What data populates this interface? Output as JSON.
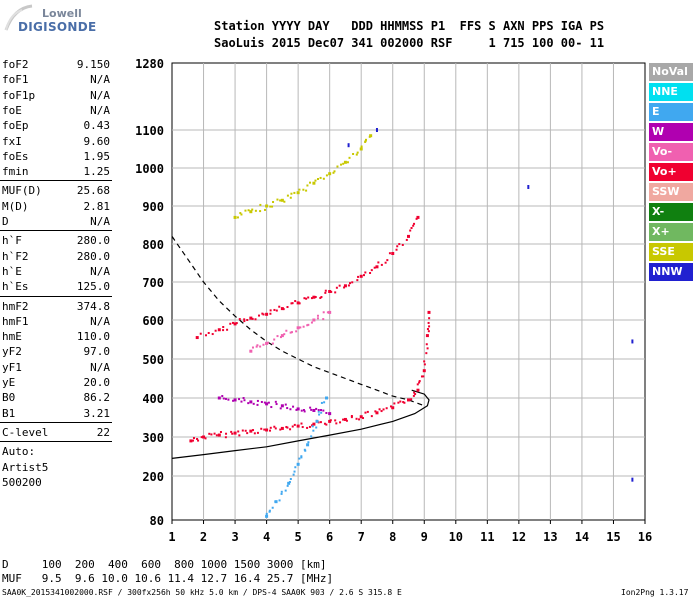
{
  "logo": {
    "top": "Lowell",
    "bottom": "DIGISONDE"
  },
  "header": {
    "line1": "Station YYYY DAY   DDD HHMMSS P1  FFS S AXN PPS IGA PS",
    "line2": "SaoLuis 2015 Dec07 341 002000 RSF     1 715 100 00- 11"
  },
  "params": {
    "group1": [
      {
        "label": "foF2",
        "value": "9.150"
      },
      {
        "label": "foF1",
        "value": "N/A"
      },
      {
        "label": "foF1p",
        "value": "N/A"
      },
      {
        "label": "foE",
        "value": "N/A"
      },
      {
        "label": "foEp",
        "value": "0.43"
      },
      {
        "label": "fxI",
        "value": "9.60"
      },
      {
        "label": "foEs",
        "value": "1.95"
      },
      {
        "label": "fmin",
        "value": "1.25"
      }
    ],
    "group2": [
      {
        "label": "MUF(D)",
        "value": "25.68"
      },
      {
        "label": "M(D)",
        "value": "2.81"
      },
      {
        "label": "D",
        "value": "N/A"
      }
    ],
    "group3": [
      {
        "label": "h`F",
        "value": "280.0"
      },
      {
        "label": "h`F2",
        "value": "280.0"
      },
      {
        "label": "h`E",
        "value": "N/A"
      },
      {
        "label": "h`Es",
        "value": "125.0"
      }
    ],
    "group4": [
      {
        "label": "hmF2",
        "value": "374.8"
      },
      {
        "label": "hmF1",
        "value": "N/A"
      },
      {
        "label": "hmE",
        "value": "110.0"
      },
      {
        "label": "yF2",
        "value": "97.0"
      },
      {
        "label": "yF1",
        "value": "N/A"
      },
      {
        "label": "yE",
        "value": "20.0"
      },
      {
        "label": "B0",
        "value": "86.2"
      },
      {
        "label": "B1",
        "value": "3.21"
      }
    ],
    "clevel": {
      "label": "C-level",
      "value": "22"
    },
    "auto": [
      "Auto:",
      "Artist5",
      "500200"
    ]
  },
  "legend": [
    {
      "label": "NoVal",
      "color": "#a8a8a8"
    },
    {
      "label": "NNE",
      "color": "#00e0f0"
    },
    {
      "label": "E",
      "color": "#40a8f0"
    },
    {
      "label": "W",
      "color": "#b000b0"
    },
    {
      "label": "Vo-",
      "color": "#f060b0"
    },
    {
      "label": "Vo+",
      "color": "#f00030"
    },
    {
      "label": "SSW",
      "color": "#f0a8a0"
    },
    {
      "label": "X-",
      "color": "#108010"
    },
    {
      "label": "X+",
      "color": "#70b860"
    },
    {
      "label": "SSE",
      "color": "#c8c800"
    },
    {
      "label": "NNW",
      "color": "#2020d0"
    }
  ],
  "chart_data": {
    "type": "scatter",
    "xlim": [
      1,
      16
    ],
    "ylim": [
      80,
      1280
    ],
    "x_ticks": [
      "1",
      "2",
      "3",
      "4",
      "5",
      "6",
      "7",
      "8",
      "9",
      "10",
      "11",
      "12",
      "13",
      "14",
      "15",
      "16"
    ],
    "y_ticks": [
      "80",
      "200",
      "300",
      "400",
      "500",
      "600",
      "700",
      "800",
      "900",
      "1000",
      "1100",
      "1280"
    ],
    "y_tick_values": [
      80,
      200,
      300,
      400,
      500,
      600,
      700,
      800,
      900,
      1000,
      1100,
      1280
    ],
    "series": [
      {
        "color": "#f00030",
        "points": [
          [
            1.6,
            290
          ],
          [
            2.0,
            300
          ],
          [
            2.5,
            305
          ],
          [
            3.0,
            310
          ],
          [
            3.5,
            315
          ],
          [
            4.0,
            318
          ],
          [
            4.5,
            322
          ],
          [
            5.0,
            328
          ],
          [
            5.5,
            333
          ],
          [
            6.0,
            340
          ],
          [
            6.5,
            345
          ],
          [
            7.0,
            352
          ],
          [
            7.5,
            362
          ],
          [
            8.0,
            375
          ],
          [
            8.5,
            395
          ],
          [
            8.8,
            420
          ],
          [
            9.0,
            470
          ],
          [
            9.1,
            560
          ],
          [
            9.15,
            620
          ]
        ]
      },
      {
        "color": "#f00030",
        "points": [
          [
            1.8,
            555
          ],
          [
            2.5,
            575
          ],
          [
            3.0,
            590
          ],
          [
            3.5,
            605
          ],
          [
            4.0,
            615
          ],
          [
            4.5,
            630
          ],
          [
            5.0,
            645
          ],
          [
            5.5,
            660
          ],
          [
            6.0,
            675
          ],
          [
            6.5,
            690
          ],
          [
            7.0,
            715
          ],
          [
            7.5,
            740
          ],
          [
            8.0,
            775
          ],
          [
            8.5,
            820
          ],
          [
            8.8,
            870
          ]
        ]
      },
      {
        "color": "#c8c800",
        "points": [
          [
            3.0,
            870
          ],
          [
            3.5,
            885
          ],
          [
            4.0,
            900
          ],
          [
            4.5,
            915
          ],
          [
            5.0,
            935
          ],
          [
            5.5,
            960
          ],
          [
            6.0,
            985
          ],
          [
            6.5,
            1015
          ],
          [
            7.0,
            1050
          ],
          [
            7.3,
            1085
          ]
        ]
      },
      {
        "color": "#40a8f0",
        "points": [
          [
            4.0,
            90
          ],
          [
            4.3,
            130
          ],
          [
            4.7,
            180
          ],
          [
            5.0,
            230
          ],
          [
            5.3,
            280
          ],
          [
            5.6,
            340
          ],
          [
            5.9,
            400
          ]
        ]
      },
      {
        "color": "#b000b0",
        "points": [
          [
            2.5,
            400
          ],
          [
            3.0,
            395
          ],
          [
            3.5,
            390
          ],
          [
            4.0,
            385
          ],
          [
            4.5,
            380
          ],
          [
            5.0,
            372
          ],
          [
            5.5,
            368
          ],
          [
            6.0,
            360
          ]
        ]
      },
      {
        "color": "#f060b0",
        "points": [
          [
            3.5,
            520
          ],
          [
            4.0,
            540
          ],
          [
            4.5,
            560
          ],
          [
            5.0,
            580
          ],
          [
            5.5,
            600
          ],
          [
            6.0,
            620
          ]
        ]
      },
      {
        "color": "#2020d0",
        "points": [
          [
            12.3,
            950
          ],
          [
            15.6,
            545
          ],
          [
            15.6,
            190
          ],
          [
            6.6,
            1060
          ],
          [
            7.5,
            1100
          ]
        ]
      }
    ],
    "profile_curves": [
      {
        "style": "solid",
        "points": [
          [
            1.0,
            245
          ],
          [
            2.0,
            255
          ],
          [
            3.0,
            265
          ],
          [
            4.0,
            275
          ],
          [
            5.0,
            290
          ],
          [
            6.0,
            305
          ],
          [
            7.0,
            320
          ],
          [
            8.0,
            340
          ],
          [
            8.7,
            360
          ],
          [
            9.1,
            380
          ],
          [
            9.15,
            395
          ],
          [
            9.0,
            410
          ],
          [
            8.6,
            420
          ]
        ]
      },
      {
        "style": "dashed",
        "points": [
          [
            1.0,
            820
          ],
          [
            1.5,
            760
          ],
          [
            2.0,
            700
          ],
          [
            2.5,
            650
          ],
          [
            3.0,
            610
          ],
          [
            3.5,
            575
          ],
          [
            4.0,
            545
          ],
          [
            4.5,
            520
          ],
          [
            5.0,
            500
          ],
          [
            5.5,
            480
          ],
          [
            6.0,
            465
          ],
          [
            6.5,
            450
          ],
          [
            7.0,
            435
          ],
          [
            7.5,
            420
          ],
          [
            8.0,
            405
          ],
          [
            8.5,
            395
          ],
          [
            9.0,
            380
          ]
        ]
      }
    ],
    "plot_box": {
      "x0": 172,
      "y0": 63,
      "x1": 645,
      "y1": 520
    }
  },
  "bottom": {
    "d_row": "D     100  200  400  600  800 1000 1500 3000 [km]",
    "muf_row": "MUF   9.5  9.6 10.0 10.6 11.4 12.7 16.4 25.7 [MHz]"
  },
  "footer": {
    "left": "SAA0K_2015341002000.RSF / 300fx256h 50 kHz 5.0 km / DPS-4 SAA0K 903 / 2.6 S 315.8 E",
    "right": "Ion2Png 1.3.17"
  }
}
